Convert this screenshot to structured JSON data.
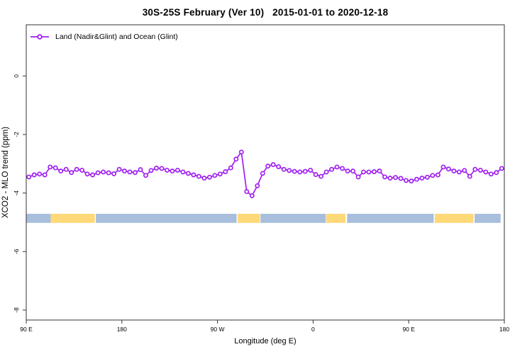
{
  "figure": {
    "title": "30S-25S February (Ver 10)   2015-01-01 to 2020-12-18"
  },
  "colors": {
    "series": "#A020F0",
    "band_ocean": "#A8BEDC",
    "band_land": "#FFD877",
    "axis": "#333333",
    "text": "#000000",
    "background": "#FFFFFF"
  },
  "chart_data": {
    "type": "line",
    "title": "30S-25S February (Ver 10)   2015-01-01 to 2020-12-18",
    "xlabel": "Longitude (deg E)",
    "ylabel": "XCO2 - MLO trend (ppm)",
    "legend": [
      "Land (Nadir&Glint) and Ocean (Glint)"
    ],
    "legend_position": "top-left",
    "grid": false,
    "xlim": [
      90,
      540
    ],
    "ylim": [
      -8.34,
      1.75
    ],
    "x_ticks": [
      {
        "value": 90,
        "label": "90 E"
      },
      {
        "value": 180,
        "label": "180"
      },
      {
        "value": 270,
        "label": "90 W"
      },
      {
        "value": 360,
        "label": "0"
      },
      {
        "value": 450,
        "label": "90 E"
      },
      {
        "value": 540,
        "label": "180"
      }
    ],
    "y_ticks": [
      {
        "value": 0,
        "label": "0"
      },
      {
        "value": -2,
        "label": "-2"
      },
      {
        "value": -4,
        "label": "-4"
      },
      {
        "value": -6,
        "label": "-6"
      },
      {
        "value": -8,
        "label": "-8"
      }
    ],
    "x": [
      92.5,
      97.5,
      102.5,
      107.5,
      112.5,
      117.5,
      122.5,
      127.5,
      132.5,
      137.5,
      142.5,
      147.5,
      152.5,
      157.5,
      162.5,
      167.5,
      172.5,
      177.5,
      182.5,
      187.5,
      192.5,
      197.5,
      202.5,
      207.5,
      212.5,
      217.5,
      222.5,
      227.5,
      232.5,
      237.5,
      242.5,
      247.5,
      252.5,
      257.5,
      262.5,
      267.5,
      272.5,
      277.5,
      282.5,
      287.5,
      292.5,
      297.5,
      302.5,
      307.5,
      312.5,
      317.5,
      322.5,
      327.5,
      332.5,
      337.5,
      342.5,
      347.5,
      352.5,
      357.5,
      362.5,
      367.5,
      372.5,
      377.5,
      382.5,
      387.5,
      392.5,
      397.5,
      402.5,
      407.5,
      412.5,
      417.5,
      422.5,
      427.5,
      432.5,
      437.5,
      442.5,
      447.5,
      452.5,
      457.5,
      462.5,
      467.5,
      472.5,
      477.5,
      482.5,
      487.5,
      492.5,
      497.5,
      502.5,
      507.5,
      512.5,
      517.5,
      522.5,
      527.5,
      532.5,
      537.5
    ],
    "series": [
      {
        "name": "Land (Nadir&Glint) and Ocean (Glint)",
        "marker": "open-circle",
        "color": "#A020F0",
        "values": [
          -3.45,
          -3.38,
          -3.35,
          -3.38,
          -3.11,
          -3.14,
          -3.25,
          -3.19,
          -3.3,
          -3.19,
          -3.22,
          -3.35,
          -3.38,
          -3.31,
          -3.28,
          -3.31,
          -3.34,
          -3.19,
          -3.25,
          -3.28,
          -3.3,
          -3.2,
          -3.4,
          -3.23,
          -3.15,
          -3.16,
          -3.22,
          -3.25,
          -3.22,
          -3.28,
          -3.33,
          -3.38,
          -3.43,
          -3.49,
          -3.46,
          -3.4,
          -3.35,
          -3.27,
          -3.14,
          -2.84,
          -2.6,
          -3.95,
          -4.09,
          -3.75,
          -3.33,
          -3.08,
          -3.03,
          -3.1,
          -3.19,
          -3.23,
          -3.26,
          -3.28,
          -3.26,
          -3.22,
          -3.37,
          -3.43,
          -3.28,
          -3.19,
          -3.11,
          -3.16,
          -3.25,
          -3.25,
          -3.45,
          -3.28,
          -3.28,
          -3.27,
          -3.25,
          -3.45,
          -3.49,
          -3.47,
          -3.5,
          -3.57,
          -3.59,
          -3.53,
          -3.49,
          -3.46,
          -3.4,
          -3.38,
          -3.11,
          -3.18,
          -3.25,
          -3.28,
          -3.23,
          -3.43,
          -3.19,
          -3.22,
          -3.28,
          -3.35,
          -3.3,
          -3.16
        ]
      }
    ],
    "band": {
      "description": "land/ocean surface-type stripe",
      "value_top": -4.71,
      "value_bottom": -5.02,
      "colors": {
        "ocean": "#A8BEDC",
        "land": "#FFD877"
      },
      "segments": [
        {
          "from": 90,
          "to": 113,
          "type": "ocean"
        },
        {
          "from": 113,
          "to": 154.5,
          "type": "land"
        },
        {
          "from": 155.5,
          "to": 288,
          "type": "ocean"
        },
        {
          "from": 289,
          "to": 310,
          "type": "land"
        },
        {
          "from": 310.5,
          "to": 372,
          "type": "ocean"
        },
        {
          "from": 372.5,
          "to": 390.5,
          "type": "land"
        },
        {
          "from": 392,
          "to": 473.5,
          "type": "ocean"
        },
        {
          "from": 474.5,
          "to": 511,
          "type": "land"
        },
        {
          "from": 512,
          "to": 536.5,
          "type": "ocean"
        }
      ]
    }
  }
}
